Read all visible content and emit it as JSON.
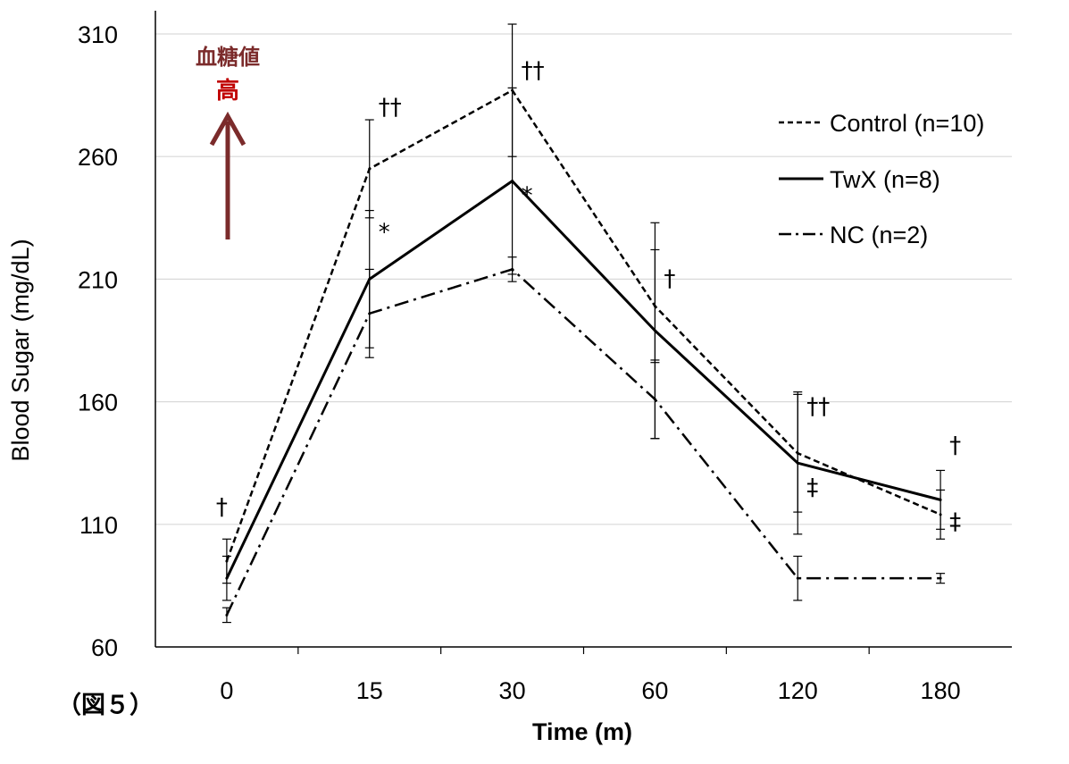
{
  "chart_data": {
    "type": "line",
    "title": "",
    "xlabel": "Time (m)",
    "ylabel": "Blood Sugar (mg/dL)",
    "categories": [
      "0",
      "15",
      "30",
      "60",
      "120",
      "180"
    ],
    "ylim": [
      60,
      310
    ],
    "yticks": [
      60,
      110,
      160,
      210,
      260,
      310
    ],
    "grid": "horizontal",
    "legend_position": "right",
    "series": [
      {
        "name": "Control (n=10)",
        "style": "dashed",
        "values": [
          95,
          255,
          287,
          199,
          139,
          114
        ],
        "errors": [
          9,
          20,
          27,
          23,
          24,
          10
        ]
      },
      {
        "name": "TwX (n=8)",
        "style": "solid",
        "values": [
          88,
          210,
          250,
          189,
          135,
          120
        ],
        "errors": [
          9,
          28,
          38,
          44,
          29,
          12
        ]
      },
      {
        "name": "NC (n=2)",
        "style": "dashdot",
        "values": [
          73,
          196,
          214,
          161,
          88,
          88
        ],
        "errors": [
          3,
          18,
          5,
          16,
          9,
          2
        ]
      }
    ],
    "annotations": [
      {
        "text": "†",
        "category": "0",
        "y": 114
      },
      {
        "text": "††",
        "category": "15",
        "y": 277
      },
      {
        "text": "*",
        "category": "15",
        "y": 226
      },
      {
        "text": "††",
        "category": "30",
        "y": 292
      },
      {
        "text": "*",
        "category": "30",
        "y": 241
      },
      {
        "text": "†",
        "category": "60",
        "y": 207
      },
      {
        "text": "††",
        "category": "120",
        "y": 155
      },
      {
        "text": "‡",
        "category": "120",
        "y": 122
      },
      {
        "text": "†",
        "category": "180",
        "y": 139
      },
      {
        "text": "‡",
        "category": "180",
        "y": 108
      }
    ],
    "inset_label_top": "血糖値",
    "inset_label_bottom": "高",
    "figure_label": "（図５）",
    "colors": {
      "line": "#000000",
      "grid": "#d9d9d9",
      "arrow": "#7b2b2b",
      "label_top": "#7b2b2b",
      "label_bottom": "#c00000"
    }
  }
}
